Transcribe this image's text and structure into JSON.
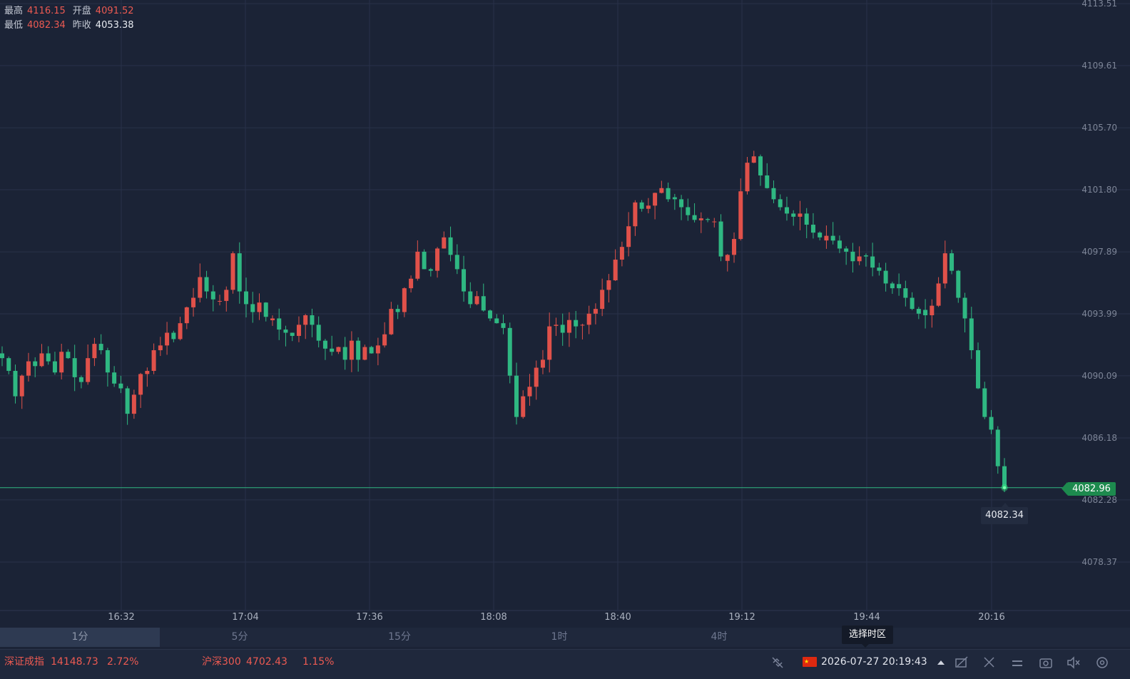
{
  "ohlc": {
    "high_label": "最高",
    "high_value": "4116.15",
    "open_label": "开盘",
    "open_value": "4091.52",
    "low_label": "最低",
    "low_value": "4082.34",
    "prev_close_label": "昨收",
    "prev_close_value": "4053.38"
  },
  "y_axis": {
    "ticks": [
      "4113.51",
      "4109.61",
      "4105.70",
      "4101.80",
      "4097.89",
      "4093.99",
      "4090.09",
      "4086.18",
      "4082.28",
      "4078.37"
    ]
  },
  "x_axis": {
    "ticks": [
      "16:32",
      "17:04",
      "17:36",
      "18:08",
      "18:40",
      "19:12",
      "19:44",
      "20:16"
    ]
  },
  "current_price": "4082.96",
  "low_tooltip": "4082.34",
  "colors": {
    "up": "#e0514a",
    "down": "#2fb882",
    "background": "#1b2336",
    "price_line": "#2fb882"
  },
  "chart_data": {
    "type": "candlestick",
    "ylim": [
      4076.0,
      4116.0
    ],
    "x_ticks": [
      "16:32",
      "17:04",
      "17:36",
      "18:08",
      "18:40",
      "19:12",
      "19:44",
      "20:16"
    ],
    "close_series": [
      4091.2,
      4090.4,
      4088.8,
      4090.1,
      4091.0,
      4090.7,
      4091.5,
      4091.0,
      4090.3,
      4091.6,
      4091.2,
      4090.0,
      4089.7,
      4091.2,
      4092.1,
      4091.7,
      4090.3,
      4089.6,
      4089.3,
      4087.7,
      4088.9,
      4090.2,
      4090.4,
      4091.7,
      4092.0,
      4092.8,
      4092.4,
      4093.4,
      4094.4,
      4095.0,
      4096.3,
      4095.4,
      4094.9,
      4094.8,
      4095.5,
      4097.8,
      4095.4,
      4094.6,
      4094.1,
      4094.7,
      4093.8,
      4093.7,
      4093.0,
      4092.8,
      4092.6,
      4093.3,
      4093.9,
      4093.3,
      4092.3,
      4091.8,
      4091.6,
      4091.9,
      4091.1,
      4092.3,
      4091.1,
      4091.9,
      4091.5,
      4092.0,
      4092.7,
      4094.3,
      4094.1,
      4095.6,
      4096.2,
      4097.9,
      4096.8,
      4096.7,
      4098.1,
      4098.8,
      4097.7,
      4096.8,
      4095.4,
      4094.6,
      4095.1,
      4094.2,
      4093.7,
      4093.4,
      4093.1,
      4090.1,
      4087.5,
      4088.8,
      4089.4,
      4090.6,
      4091.1,
      4093.2,
      4093.3,
      4092.8,
      4093.6,
      4093.2,
      4093.3,
      4094.0,
      4094.3,
      4095.5,
      4096.1,
      4097.4,
      4098.2,
      4099.5,
      4101.0,
      4100.6,
      4100.8,
      4101.6,
      4101.9,
      4101.2,
      4101.2,
      4100.7,
      4100.2,
      4099.9,
      4100.0,
      4099.9,
      4099.8,
      4097.6,
      4097.7,
      4098.7,
      4101.7,
      4103.5,
      4103.9,
      4102.7,
      4101.9,
      4101.2,
      4100.7,
      4100.3,
      4100.1,
      4100.3,
      4099.6,
      4099.1,
      4098.8,
      4098.9,
      4098.6,
      4098.1,
      4097.9,
      4097.3,
      4097.6,
      4097.6,
      4096.9,
      4096.7,
      4095.9,
      4095.6,
      4095.6,
      4095.0,
      4094.3,
      4094.0,
      4093.9,
      4094.5,
      4095.9,
      4097.8,
      4096.7,
      4095.0,
      4093.7,
      4091.7,
      4089.3,
      4087.5,
      4086.7,
      4084.4,
      4082.96
    ]
  },
  "periods": [
    {
      "label": "1分",
      "active": true
    },
    {
      "label": "5分",
      "active": false
    },
    {
      "label": "15分",
      "active": false
    },
    {
      "label": "1时",
      "active": false
    },
    {
      "label": "4时",
      "active": false
    }
  ],
  "timezone_tooltip": "选择时区",
  "status": {
    "sz_name": "深证成指",
    "sz_value": "14148.73",
    "sz_change": "2.72%",
    "hs_name": "沪深300",
    "hs_value": "4702.43",
    "hs_change": "1.15%",
    "datetime": "2026-07-27 20:19:43"
  },
  "icons": [
    "link-off-icon",
    "flag-cn-icon",
    "caret-up-icon",
    "draw-toggle-icon",
    "indicator-tool-icon",
    "menu-icon",
    "screenshot-icon",
    "mute-icon",
    "settings-icon"
  ]
}
